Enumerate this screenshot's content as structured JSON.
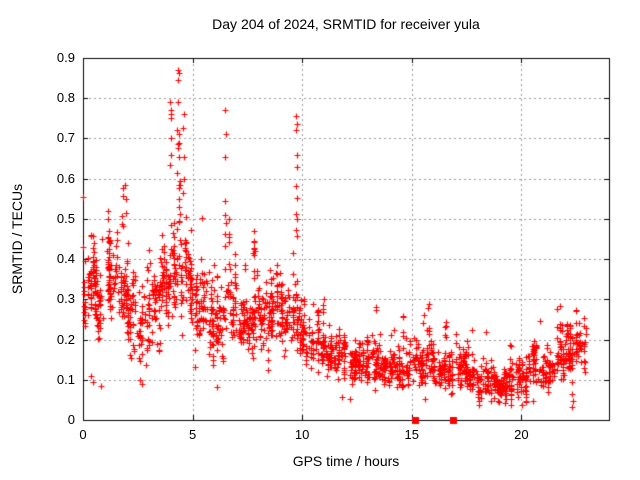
{
  "chart_data": {
    "type": "scatter",
    "title": "Day 204 of 2024, SRMTID for receiver yula",
    "xlabel": "GPS time / hours",
    "ylabel": "SRMTID / TECUs",
    "xlim": [
      0,
      24
    ],
    "ylim": [
      0,
      0.9
    ],
    "xticks": {
      "values": [
        0,
        5,
        10,
        15,
        20
      ],
      "labels": [
        "0",
        "5",
        "10",
        "15",
        "20"
      ]
    },
    "yticks": {
      "values": [
        0,
        0.1,
        0.2,
        0.3,
        0.4,
        0.5,
        0.6,
        0.7,
        0.8,
        0.9
      ],
      "labels": [
        "0",
        "0.1",
        "0.2",
        "0.3",
        "0.4",
        "0.5",
        "0.6",
        "0.7",
        "0.8",
        "0.9"
      ]
    },
    "grid": true,
    "grid_color": "#999999",
    "axis_color": "#000000",
    "marker": {
      "type": "plus",
      "color": "#ff0000",
      "size": 7
    },
    "seed": 20424,
    "envelope_bins_note": "each bin: [start_hour(width 0.5h), center_TECU, spread_TECU, point_count]",
    "envelope": [
      [
        0.0,
        0.33,
        0.07,
        55
      ],
      [
        0.5,
        0.3,
        0.08,
        55
      ],
      [
        1.0,
        0.34,
        0.09,
        55
      ],
      [
        1.5,
        0.33,
        0.1,
        55
      ],
      [
        2.0,
        0.27,
        0.08,
        48
      ],
      [
        2.5,
        0.23,
        0.07,
        45
      ],
      [
        3.0,
        0.28,
        0.08,
        48
      ],
      [
        3.5,
        0.34,
        0.09,
        55
      ],
      [
        4.0,
        0.37,
        0.11,
        58
      ],
      [
        4.5,
        0.36,
        0.12,
        58
      ],
      [
        5.0,
        0.28,
        0.09,
        48
      ],
      [
        5.5,
        0.26,
        0.08,
        46
      ],
      [
        6.0,
        0.22,
        0.07,
        44
      ],
      [
        6.5,
        0.27,
        0.09,
        46
      ],
      [
        7.0,
        0.24,
        0.07,
        46
      ],
      [
        7.5,
        0.27,
        0.09,
        50
      ],
      [
        8.0,
        0.25,
        0.08,
        50
      ],
      [
        8.5,
        0.28,
        0.08,
        50
      ],
      [
        9.0,
        0.26,
        0.08,
        48
      ],
      [
        9.5,
        0.25,
        0.08,
        46
      ],
      [
        10.0,
        0.19,
        0.06,
        46
      ],
      [
        10.5,
        0.17,
        0.055,
        46
      ],
      [
        11.0,
        0.16,
        0.05,
        46
      ],
      [
        11.5,
        0.15,
        0.05,
        46
      ],
      [
        12.0,
        0.14,
        0.045,
        46
      ],
      [
        12.5,
        0.14,
        0.045,
        46
      ],
      [
        13.0,
        0.14,
        0.05,
        46
      ],
      [
        13.5,
        0.13,
        0.04,
        46
      ],
      [
        14.0,
        0.12,
        0.04,
        46
      ],
      [
        14.5,
        0.12,
        0.045,
        46
      ],
      [
        15.0,
        0.13,
        0.05,
        46
      ],
      [
        15.5,
        0.14,
        0.055,
        46
      ],
      [
        16.0,
        0.12,
        0.04,
        46
      ],
      [
        16.5,
        0.12,
        0.045,
        46
      ],
      [
        17.0,
        0.13,
        0.05,
        46
      ],
      [
        17.5,
        0.12,
        0.045,
        46
      ],
      [
        18.0,
        0.1,
        0.04,
        46
      ],
      [
        18.5,
        0.09,
        0.035,
        46
      ],
      [
        19.0,
        0.09,
        0.035,
        46
      ],
      [
        19.5,
        0.1,
        0.04,
        46
      ],
      [
        20.0,
        0.11,
        0.045,
        46
      ],
      [
        20.5,
        0.12,
        0.05,
        46
      ],
      [
        21.0,
        0.13,
        0.05,
        46
      ],
      [
        21.5,
        0.15,
        0.055,
        48
      ],
      [
        22.0,
        0.18,
        0.06,
        50
      ],
      [
        22.5,
        0.19,
        0.055,
        40
      ]
    ],
    "outliers": [
      [
        1.12,
        0.5
      ],
      [
        1.15,
        0.52
      ],
      [
        1.18,
        0.47
      ],
      [
        1.13,
        0.455
      ],
      [
        1.93,
        0.585
      ],
      [
        1.95,
        0.55
      ],
      [
        1.97,
        0.515
      ],
      [
        3.99,
        0.79
      ],
      [
        4.01,
        0.77
      ],
      [
        4.02,
        0.762
      ],
      [
        4.0,
        0.752
      ],
      [
        4.03,
        0.7
      ],
      [
        4.0,
        0.66
      ],
      [
        3.98,
        0.635
      ],
      [
        4.34,
        0.87
      ],
      [
        4.36,
        0.862
      ],
      [
        4.33,
        0.845
      ],
      [
        4.35,
        0.79
      ],
      [
        4.31,
        0.72
      ],
      [
        4.33,
        0.685
      ],
      [
        4.38,
        0.655
      ],
      [
        4.3,
        0.615
      ],
      [
        4.4,
        0.585
      ],
      [
        4.6,
        0.76
      ],
      [
        4.58,
        0.725
      ],
      [
        4.61,
        0.655
      ],
      [
        4.62,
        0.6
      ],
      [
        4.56,
        0.565
      ],
      [
        6.5,
        0.77
      ],
      [
        6.51,
        0.71
      ],
      [
        6.5,
        0.655
      ],
      [
        6.49,
        0.545
      ],
      [
        6.5,
        0.51
      ],
      [
        6.52,
        0.49
      ],
      [
        6.5,
        0.462
      ],
      [
        6.48,
        0.432
      ],
      [
        7.8,
        0.47
      ],
      [
        7.82,
        0.443
      ],
      [
        7.78,
        0.428
      ],
      [
        9.74,
        0.755
      ],
      [
        9.76,
        0.735
      ],
      [
        9.73,
        0.72
      ],
      [
        9.75,
        0.66
      ],
      [
        9.77,
        0.63
      ],
      [
        9.72,
        0.582
      ],
      [
        9.75,
        0.552
      ],
      [
        9.74,
        0.512
      ],
      [
        9.76,
        0.5
      ],
      [
        9.73,
        0.472
      ],
      [
        9.77,
        0.458
      ],
      [
        9.75,
        0.345
      ],
      [
        10.95,
        0.285
      ],
      [
        11.0,
        0.3
      ],
      [
        14.2,
        0.225
      ],
      [
        15.5,
        0.24
      ],
      [
        15.55,
        0.26
      ],
      [
        0.35,
        0.11
      ],
      [
        0.45,
        0.095
      ],
      [
        0.8,
        0.085
      ],
      [
        2.6,
        0.1
      ],
      [
        2.7,
        0.09
      ],
      [
        6.1,
        0.082
      ],
      [
        11.8,
        0.057
      ],
      [
        12.2,
        0.052
      ],
      [
        18.6,
        0.047
      ],
      [
        22.3,
        0.065
      ],
      [
        22.35,
        0.048
      ],
      [
        22.32,
        0.032
      ]
    ],
    "zero_markers": {
      "marker": "filled-square",
      "color": "#ff0000",
      "y": 0,
      "x": [
        15.15,
        16.88
      ]
    }
  }
}
